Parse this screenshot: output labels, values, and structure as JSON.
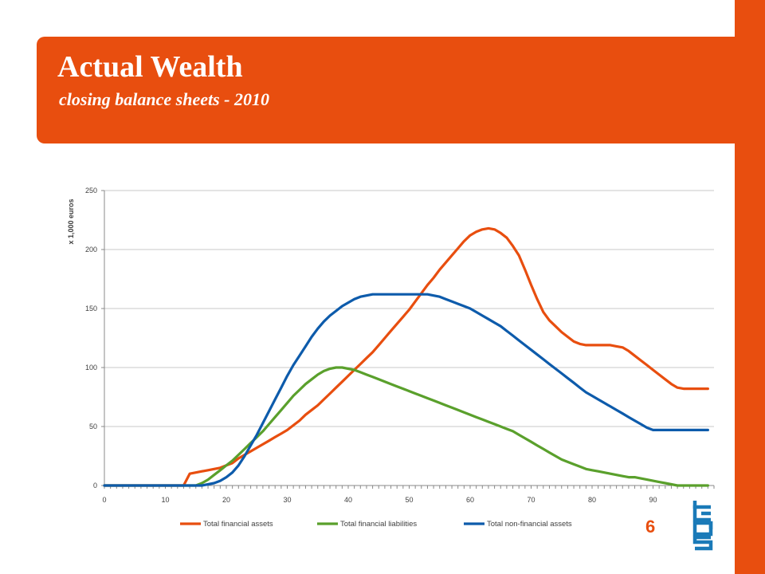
{
  "slide": {
    "title": "Actual Wealth",
    "subtitle": "closing balance sheets - 2010",
    "page_number": "6",
    "logo": "cbs-logo-icon"
  },
  "colors": {
    "accent": "#e84e0f",
    "grid": "#c8c8c8",
    "axis_text": "#404040"
  },
  "chart_data": {
    "type": "line",
    "title": "",
    "xlabel": "",
    "ylabel": "x 1,000 euros",
    "xlim": [
      0,
      100
    ],
    "ylim": [
      0,
      250
    ],
    "xticks": [
      0,
      10,
      20,
      30,
      40,
      50,
      60,
      70,
      80,
      90
    ],
    "yticks": [
      0,
      50,
      100,
      150,
      200,
      250
    ],
    "grid": true,
    "legend_position": "bottom",
    "x": [
      0,
      5,
      10,
      13,
      14,
      15,
      16,
      17,
      18,
      19,
      20,
      21,
      22,
      23,
      24,
      25,
      26,
      27,
      28,
      29,
      30,
      31,
      32,
      33,
      34,
      35,
      36,
      37,
      38,
      39,
      40,
      41,
      42,
      43,
      44,
      45,
      46,
      47,
      48,
      49,
      50,
      51,
      52,
      53,
      54,
      55,
      56,
      57,
      58,
      59,
      60,
      61,
      62,
      63,
      64,
      65,
      66,
      67,
      68,
      69,
      70,
      71,
      72,
      73,
      74,
      75,
      76,
      77,
      78,
      79,
      80,
      81,
      82,
      83,
      84,
      85,
      86,
      87,
      88,
      89,
      90,
      91,
      92,
      93,
      94,
      95,
      96,
      97,
      98,
      99,
      100
    ],
    "series": [
      {
        "name": "Total financial assets",
        "color": "#e84e0f",
        "values": [
          0,
          0,
          0,
          0,
          10,
          11,
          12,
          13,
          14,
          15,
          17,
          19,
          23,
          26,
          29,
          32,
          35,
          38,
          41,
          44,
          47,
          51,
          55,
          60,
          64,
          68,
          73,
          78,
          83,
          88,
          93,
          98,
          103,
          108,
          113,
          119,
          125,
          131,
          137,
          143,
          149,
          156,
          163,
          170,
          176,
          183,
          189,
          195,
          201,
          207,
          212,
          215,
          217,
          218,
          217,
          214,
          210,
          203,
          195,
          183,
          170,
          158,
          147,
          140,
          135,
          130,
          126,
          122,
          120,
          119,
          119,
          119,
          119,
          119,
          118,
          117,
          114,
          110,
          106,
          102,
          98,
          94,
          90,
          86,
          83,
          82,
          82,
          82,
          82,
          82,
          82
        ],
        "end_x": 99
      },
      {
        "name": "Total financial liabilities",
        "color": "#5aa02c",
        "values": [
          0,
          0,
          0,
          0,
          0,
          0,
          2,
          5,
          9,
          13,
          17,
          21,
          26,
          31,
          36,
          41,
          46,
          52,
          58,
          64,
          70,
          76,
          81,
          86,
          90,
          94,
          97,
          99,
          100,
          100,
          99,
          98,
          96,
          94,
          92,
          90,
          88,
          86,
          84,
          82,
          80,
          78,
          76,
          74,
          72,
          70,
          68,
          66,
          64,
          62,
          60,
          58,
          56,
          54,
          52,
          50,
          48,
          46,
          43,
          40,
          37,
          34,
          31,
          28,
          25,
          22,
          20,
          18,
          16,
          14,
          13,
          12,
          11,
          10,
          9,
          8,
          7,
          7,
          6,
          5,
          4,
          3,
          2,
          1,
          0,
          0,
          0,
          0,
          0,
          0,
          0
        ],
        "end_x": 99
      },
      {
        "name": "Total non-financial assets",
        "color": "#0d5bab",
        "values": [
          0,
          0,
          0,
          0,
          0,
          0,
          0,
          1,
          2,
          4,
          7,
          11,
          17,
          25,
          34,
          43,
          53,
          63,
          73,
          83,
          93,
          102,
          110,
          118,
          126,
          133,
          139,
          144,
          148,
          152,
          155,
          158,
          160,
          161,
          162,
          162,
          162,
          162,
          162,
          162,
          162,
          162,
          162,
          162,
          161,
          160,
          158,
          156,
          154,
          152,
          150,
          147,
          144,
          141,
          138,
          135,
          131,
          127,
          123,
          119,
          115,
          111,
          107,
          103,
          99,
          95,
          91,
          87,
          83,
          79,
          76,
          73,
          70,
          67,
          64,
          61,
          58,
          55,
          52,
          49,
          47,
          47,
          47,
          47,
          47,
          47,
          47,
          47,
          47,
          47,
          47
        ],
        "end_x": 99
      }
    ]
  }
}
